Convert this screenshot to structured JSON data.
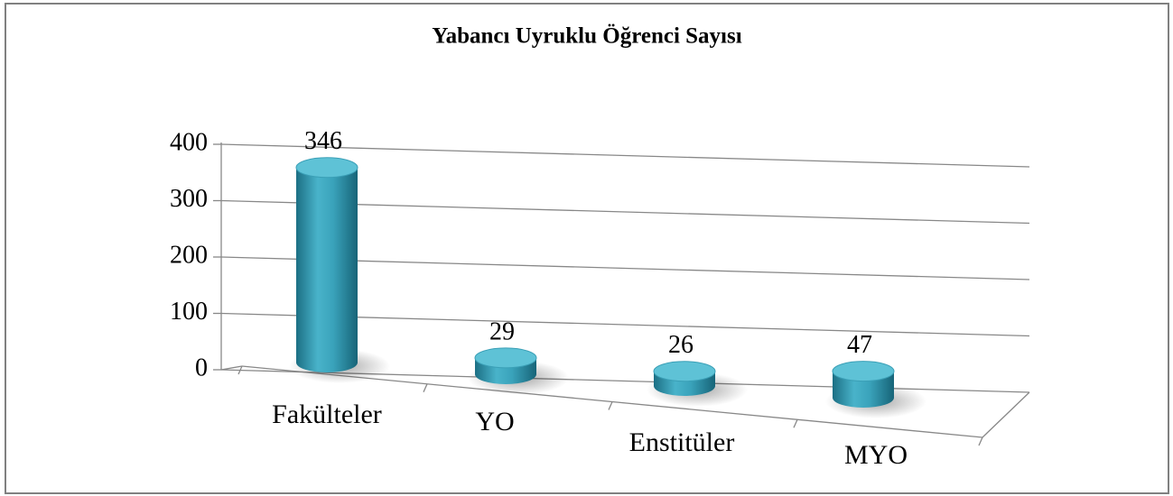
{
  "chart_data": {
    "type": "bar3d",
    "title": "Yabancı Uyruklu  Öğrenci Sayısı",
    "categories": [
      "Fakülteler",
      "YO",
      "Enstitüler",
      "MYO"
    ],
    "values": [
      346,
      29,
      26,
      47
    ],
    "color": "#2e93ab",
    "ylim": [
      0,
      400
    ],
    "yticks": [
      0,
      100,
      200,
      300,
      400
    ],
    "grid": true
  }
}
